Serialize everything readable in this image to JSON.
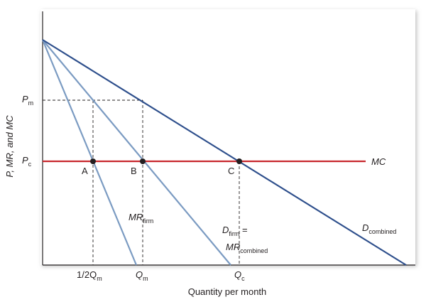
{
  "colors": {
    "demand_line": "#2e4f8c",
    "mr_line": "#7b9bc2",
    "mc_line": "#c8282d",
    "axis": "#231f20",
    "frame_shadow": "#bdbdbd",
    "point": "#231f20"
  },
  "axes": {
    "y_label": "P, MR, and MC",
    "x_label": "Quantity per month"
  },
  "y_ticks": {
    "pm": {
      "main": "P",
      "sub": "m"
    },
    "pc": {
      "main": "P",
      "sub": "c"
    }
  },
  "x_ticks": {
    "half_qm": {
      "main": "1/2Q",
      "sub": "m"
    },
    "qm": {
      "main": "Q",
      "sub": "m"
    },
    "qc": {
      "main": "Q",
      "sub": "c"
    }
  },
  "points": {
    "a": "A",
    "b": "B",
    "c": "C"
  },
  "curves": {
    "mc": "MC",
    "mr_firm": {
      "main": "MR",
      "sub": "firm"
    },
    "d_firm": {
      "main": "D",
      "sub": "firm",
      "suffix": " ="
    },
    "mr_combined": {
      "main": "MR",
      "sub": "combined"
    },
    "d_combined": {
      "main": "D",
      "sub": "combined"
    }
  }
}
